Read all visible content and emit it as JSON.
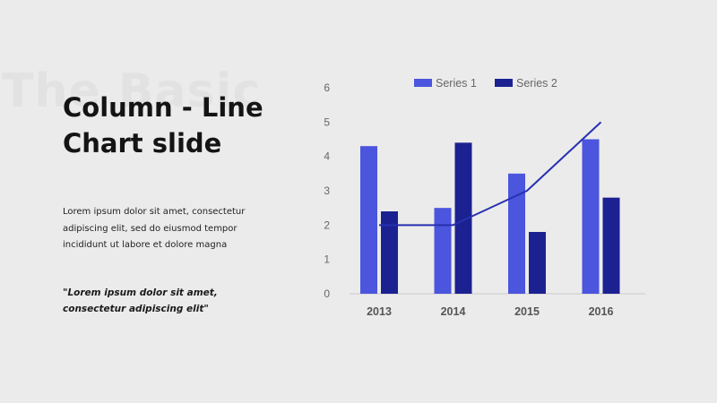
{
  "slide": {
    "watermark": "The Basic",
    "title_line1": "Column - Line",
    "title_line2": "Chart slide",
    "body": "Lorem ipsum dolor sit amet, consectetur adipiscing elit, sed do eiusmod tempor incididunt ut labore et dolore magna",
    "quote": "\"Lorem ipsum dolor sit amet, consectetur adipiscing elit\""
  },
  "colors": {
    "series1": "#4b55dd",
    "series2": "#1c2191",
    "line": "#2730b0",
    "axis": "#c8c8c8"
  },
  "chart_data": {
    "type": "bar",
    "categories": [
      "2013",
      "2014",
      "2015",
      "2016"
    ],
    "series": [
      {
        "name": "Series 1",
        "type": "bar",
        "values": [
          4.3,
          2.5,
          3.5,
          4.5
        ]
      },
      {
        "name": "Series 2",
        "type": "bar",
        "values": [
          2.4,
          4.4,
          1.8,
          2.8
        ]
      },
      {
        "type": "line",
        "values": [
          2.0,
          2.0,
          3.0,
          5.0
        ]
      }
    ],
    "ylim": [
      0,
      6
    ],
    "yticks": [
      "0",
      "1",
      "2",
      "3",
      "4",
      "5",
      "6"
    ],
    "grid": false,
    "legend": "top"
  }
}
